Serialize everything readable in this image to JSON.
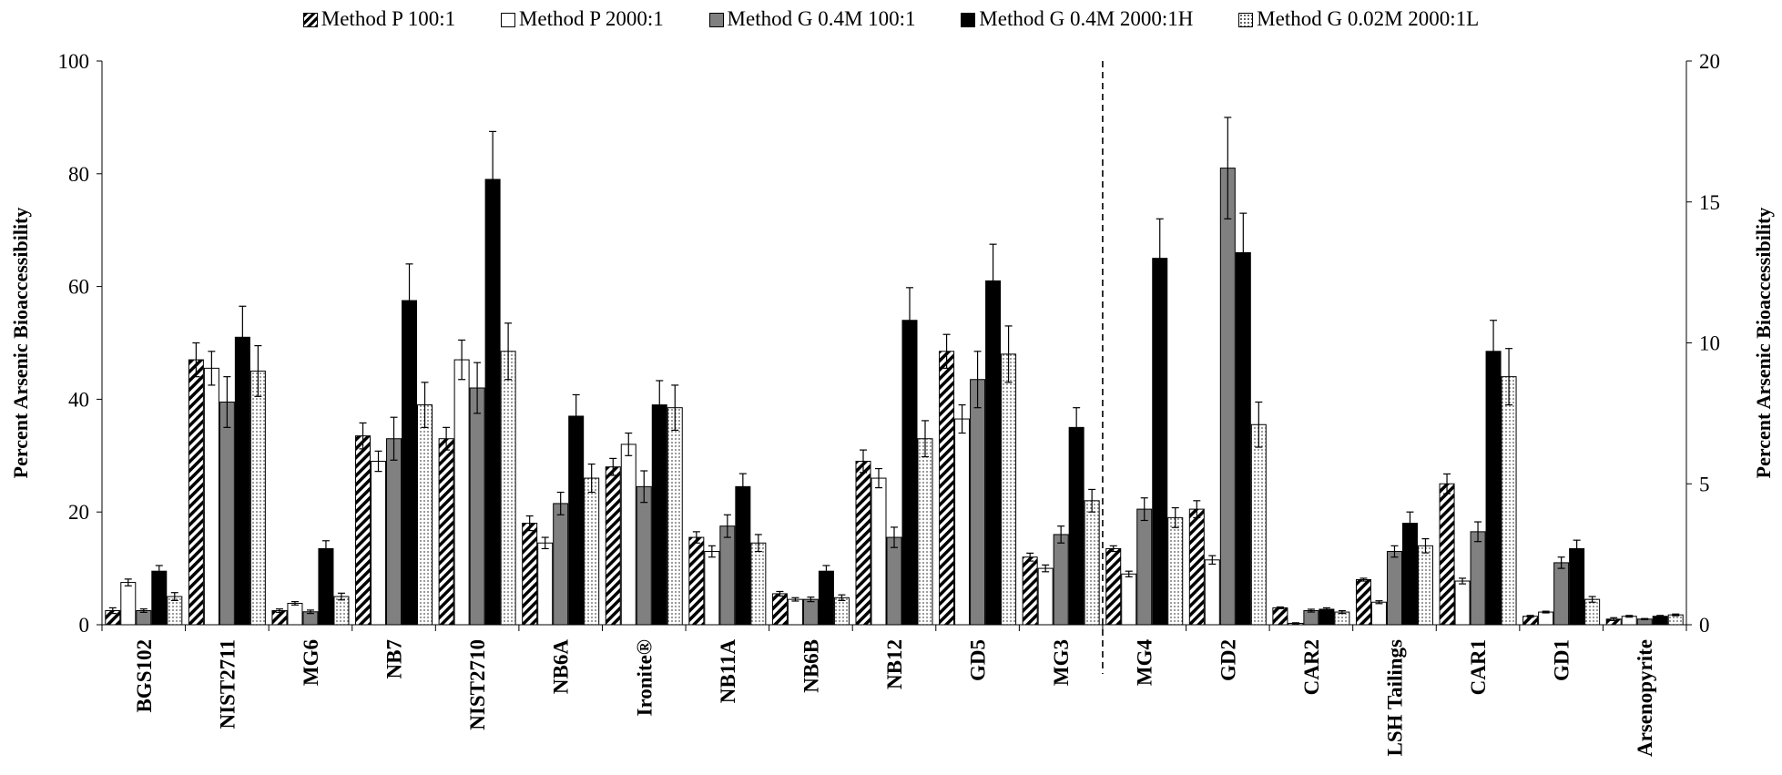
{
  "chart_data": {
    "type": "bar",
    "title": "",
    "ylabel_left": "Percent Arsenic Bioaccessibility",
    "ylabel_right": "Percent Arsenic Bioaccessibility",
    "ylim_left": [
      0,
      100
    ],
    "ylim_right": [
      0,
      20
    ],
    "yticks_left": [
      "0",
      "20",
      "40",
      "60",
      "80",
      "100"
    ],
    "yticks_right": [
      "0",
      "5",
      "10",
      "15",
      "20"
    ],
    "legend_position": "top",
    "categories": [
      "BGS102",
      "NIST2711",
      "MG6",
      "NB7",
      "NIST2710",
      "NB6A",
      "Ironite®",
      "NB11A",
      "NB6B",
      "NB12",
      "GD5",
      "MG3",
      "MG4",
      "GD2",
      "CAR2",
      "LSH Tailings",
      "CAR1",
      "GD1",
      "Arsenopyrite"
    ],
    "axis_assignment": [
      "left",
      "left",
      "left",
      "left",
      "left",
      "left",
      "left",
      "left",
      "left",
      "left",
      "left",
      "left",
      "right",
      "right",
      "right",
      "right",
      "right",
      "right",
      "right"
    ],
    "series": [
      {
        "name": "Method P 100:1",
        "pattern": "diagonal-hatch",
        "values": [
          2.5,
          47,
          2.5,
          33.5,
          33,
          18,
          28,
          15.5,
          5.5,
          29,
          48.5,
          12,
          2.7,
          4.1,
          0.6,
          1.6,
          5.0,
          0.3,
          0.2
        ],
        "errors": [
          0.5,
          3,
          0.3,
          2.3,
          2,
          1.3,
          1.5,
          1,
          0.4,
          2,
          3,
          0.7,
          0.1,
          0.3,
          0.03,
          0.05,
          0.35,
          0.03,
          0.05
        ]
      },
      {
        "name": "Method P 2000:1",
        "pattern": "white",
        "values": [
          7.5,
          45.5,
          3.8,
          29,
          47,
          14.5,
          32,
          13,
          4.5,
          26,
          36.5,
          10,
          1.8,
          2.3,
          0.05,
          0.8,
          1.55,
          0.45,
          0.3
        ],
        "errors": [
          0.6,
          3,
          0.3,
          1.8,
          3.5,
          1,
          2,
          1,
          0.3,
          1.7,
          2.5,
          0.6,
          0.1,
          0.15,
          0.02,
          0.05,
          0.1,
          0.03,
          0.03
        ]
      },
      {
        "name": "Method G 0.4M 100:1",
        "pattern": "gray",
        "values": [
          2.5,
          39.5,
          2.3,
          33,
          42,
          21.5,
          24.5,
          17.5,
          4.5,
          15.5,
          43.5,
          16,
          4.1,
          16.2,
          0.5,
          2.6,
          3.3,
          2.2,
          0.2
        ],
        "errors": [
          0.3,
          4.5,
          0.3,
          3.8,
          4.5,
          2,
          2.8,
          2,
          0.4,
          1.8,
          5,
          1.5,
          0.4,
          1.8,
          0.05,
          0.2,
          0.35,
          0.2,
          0.02
        ]
      },
      {
        "name": "Method G 0.4M 2000:1H",
        "pattern": "black",
        "values": [
          9.5,
          51,
          13.5,
          57.5,
          79,
          37,
          39,
          24.5,
          9.5,
          54,
          61,
          35,
          13,
          13.2,
          0.55,
          3.6,
          9.7,
          2.7,
          0.3
        ],
        "errors": [
          1,
          5.5,
          1.4,
          6.5,
          8.5,
          3.8,
          4.3,
          2.3,
          1,
          5.8,
          6.5,
          3.5,
          1.4,
          1.4,
          0.05,
          0.4,
          1.1,
          0.3,
          0.03
        ]
      },
      {
        "name": "Method G 0.02M 2000:1L",
        "pattern": "dotted",
        "values": [
          5,
          45,
          5,
          39,
          48.5,
          26,
          38.5,
          14.5,
          4.8,
          33,
          48,
          22,
          3.8,
          7.1,
          0.45,
          2.8,
          8.8,
          0.9,
          0.35
        ],
        "errors": [
          0.7,
          4.5,
          0.6,
          4,
          5,
          2.5,
          4,
          1.5,
          0.5,
          3.2,
          5,
          2,
          0.35,
          0.8,
          0.05,
          0.25,
          1,
          0.1,
          0.03
        ]
      }
    ]
  }
}
